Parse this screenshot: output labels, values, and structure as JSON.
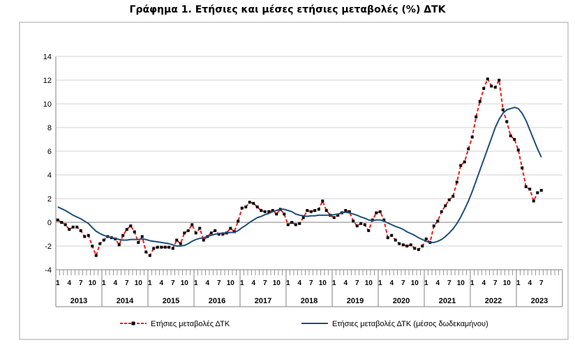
{
  "chart_data": {
    "type": "line",
    "title": "Γράφημα 1. Ετήσιες και μέσες ετήσιες μεταβολές (%) ΔΤΚ",
    "xlabel": "",
    "ylabel": "",
    "ylim": [
      -4,
      14
    ],
    "yticks": [
      -4,
      -2,
      0,
      2,
      4,
      6,
      8,
      10,
      12,
      14
    ],
    "grid": true,
    "legend_position": "bottom",
    "years": [
      "2013",
      "2014",
      "2015",
      "2016",
      "2017",
      "2018",
      "2019",
      "2020",
      "2021",
      "2022",
      "2023"
    ],
    "month_ticks": [
      "1",
      "4",
      "7",
      "10"
    ],
    "period_start": "2013-01",
    "series": [
      {
        "name": "Ετήσιες μεταβολές ΔΤΚ",
        "color": "#e8201c",
        "style": "dashed-markers",
        "values": [
          0.2,
          0.0,
          -0.2,
          -0.6,
          -0.4,
          -0.4,
          -0.7,
          -1.2,
          -1.1,
          -2.0,
          -2.8,
          -1.8,
          -1.5,
          -1.2,
          -1.3,
          -1.4,
          -1.9,
          -1.1,
          -0.6,
          -0.3,
          -0.8,
          -1.7,
          -1.2,
          -2.5,
          -2.8,
          -2.2,
          -2.1,
          -2.1,
          -2.1,
          -2.1,
          -2.2,
          -1.5,
          -1.8,
          -0.9,
          -0.7,
          -0.2,
          -0.9,
          -0.5,
          -1.5,
          -1.2,
          -0.9,
          -0.7,
          -1.0,
          -1.0,
          -0.9,
          -0.5,
          -0.8,
          0.1,
          1.2,
          1.3,
          1.7,
          1.6,
          1.3,
          1.0,
          0.9,
          0.9,
          1.0,
          0.7,
          1.1,
          0.7,
          -0.2,
          0.0,
          -0.2,
          -0.1,
          0.4,
          1.0,
          0.9,
          1.0,
          1.1,
          1.8,
          1.0,
          0.6,
          0.4,
          0.6,
          0.8,
          1.0,
          0.9,
          0.1,
          -0.3,
          -0.1,
          -0.2,
          -0.7,
          0.2,
          0.8,
          0.9,
          0.2,
          -1.3,
          -1.1,
          -1.5,
          -1.8,
          -1.9,
          -2.0,
          -1.9,
          -2.2,
          -2.3,
          -2.0,
          -1.4,
          -1.7,
          -0.3,
          0.1,
          0.9,
          1.4,
          1.9,
          2.2,
          3.4,
          4.8,
          5.1,
          6.2,
          7.2,
          8.9,
          10.2,
          11.3,
          12.1,
          11.5,
          11.4,
          12.0,
          9.5,
          8.5,
          7.3,
          7.0,
          6.1,
          4.6,
          3.0,
          2.8,
          1.8,
          2.5,
          2.7
        ]
      },
      {
        "name": "Ετήσιες μεταβολές ΔΤΚ (μέσος δωδεκαμήνου)",
        "color": "#1f4e79",
        "style": "solid",
        "values": [
          1.3,
          1.15,
          1.0,
          0.8,
          0.6,
          0.45,
          0.3,
          0.1,
          -0.1,
          -0.45,
          -0.75,
          -0.95,
          -1.1,
          -1.2,
          -1.3,
          -1.35,
          -1.45,
          -1.5,
          -1.5,
          -1.45,
          -1.45,
          -1.45,
          -1.4,
          -1.45,
          -1.55,
          -1.6,
          -1.65,
          -1.7,
          -1.75,
          -1.8,
          -1.9,
          -2.0,
          -2.0,
          -1.95,
          -1.8,
          -1.6,
          -1.45,
          -1.35,
          -1.3,
          -1.2,
          -1.1,
          -1.0,
          -0.95,
          -0.9,
          -0.9,
          -0.85,
          -0.85,
          -0.7,
          -0.45,
          -0.25,
          0.0,
          0.2,
          0.4,
          0.5,
          0.65,
          0.75,
          0.9,
          1.0,
          1.1,
          1.1,
          1.0,
          0.9,
          0.7,
          0.6,
          0.55,
          0.5,
          0.55,
          0.55,
          0.6,
          0.6,
          0.6,
          0.6,
          0.65,
          0.7,
          0.8,
          0.85,
          0.8,
          0.7,
          0.6,
          0.45,
          0.35,
          0.2,
          0.15,
          0.2,
          0.2,
          0.1,
          -0.05,
          -0.2,
          -0.35,
          -0.45,
          -0.6,
          -0.8,
          -0.95,
          -1.1,
          -1.3,
          -1.45,
          -1.6,
          -1.7,
          -1.7,
          -1.6,
          -1.45,
          -1.2,
          -0.9,
          -0.55,
          -0.1,
          0.45,
          1.1,
          1.8,
          2.6,
          3.5,
          4.4,
          5.3,
          6.2,
          7.1,
          8.0,
          8.7,
          9.2,
          9.5,
          9.6,
          9.7,
          9.6,
          9.2,
          8.6,
          7.8,
          7.0,
          6.2,
          5.5
        ]
      }
    ]
  }
}
